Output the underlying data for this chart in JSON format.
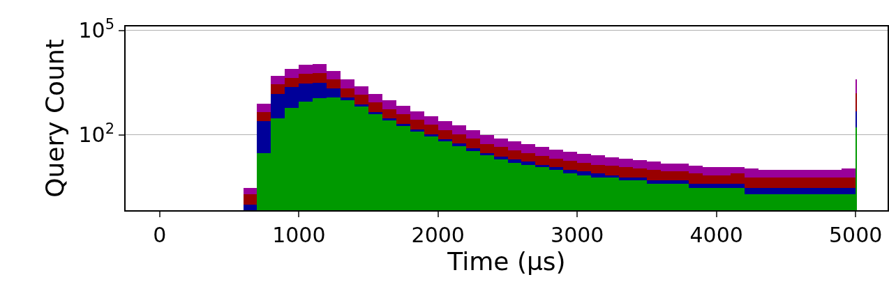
{
  "chart_data": {
    "type": "bar",
    "xlabel": "Time (μs)",
    "ylabel": "Query Count",
    "x": [
      650,
      750,
      850,
      950,
      1050,
      1150,
      1250,
      1350,
      1450,
      1550,
      1650,
      1750,
      1850,
      1950,
      2050,
      2150,
      2250,
      2350,
      2450,
      2550,
      2650,
      2750,
      2850,
      2950,
      3050,
      3150,
      3250,
      3350,
      3450,
      3550,
      3650,
      3750,
      3850,
      3950,
      4050,
      4150,
      4250,
      4350,
      4450,
      4550,
      4650,
      4750,
      4850,
      4950,
      5005
    ],
    "series": [
      {
        "color": "#009900",
        "values": [
          null,
          30,
          300,
          600,
          900,
          1150,
          1200,
          1000,
          650,
          400,
          260,
          180,
          125,
          90,
          65,
          48,
          35,
          26,
          20,
          16,
          14,
          12,
          10,
          8,
          7,
          6,
          6,
          5,
          5,
          4,
          4,
          4,
          3,
          3,
          3,
          3,
          2,
          2,
          2,
          2,
          2,
          2,
          2,
          2,
          165
        ]
      },
      {
        "color": "#000099",
        "values": [
          1,
          220,
          1200,
          1800,
          2100,
          2050,
          1000,
          200,
          100,
          50,
          40,
          30,
          20,
          15,
          10,
          9,
          7,
          4,
          4,
          4,
          3,
          2,
          2,
          2,
          2,
          2,
          1,
          1,
          1,
          1,
          1,
          1,
          1,
          1,
          1,
          1,
          1,
          1,
          1,
          1,
          1,
          1,
          1,
          1,
          315
        ]
      },
      {
        "color": "#990000",
        "values": [
          1,
          200,
          1300,
          2000,
          2800,
          2800,
          1800,
          1000,
          650,
          400,
          250,
          190,
          125,
          95,
          65,
          48,
          38,
          25,
          21,
          16,
          13,
          11,
          9,
          8,
          7,
          6,
          6,
          6,
          5,
          5,
          4,
          4,
          4,
          3,
          3,
          4,
          3,
          3,
          3,
          3,
          3,
          3,
          3,
          3,
          1120
        ]
      },
      {
        "color": "#990099",
        "values": [
          1,
          350,
          2200,
          3600,
          4700,
          5000,
          3000,
          1800,
          1100,
          650,
          450,
          300,
          210,
          150,
          110,
          85,
          60,
          45,
          35,
          29,
          25,
          20,
          17,
          15,
          13,
          12,
          10,
          9,
          8,
          7,
          6,
          6,
          5,
          5,
          5,
          4,
          5,
          4,
          4,
          4,
          4,
          4,
          4,
          5,
          2400
        ]
      }
    ],
    "stacked": true,
    "xlim": [
      -245,
      5230
    ],
    "xticks": [
      0,
      1000,
      2000,
      3000,
      4000,
      5000
    ],
    "ylim": [
      0.69,
      130000
    ],
    "yticks": [
      {
        "value": 100,
        "label": "10$^{2}$"
      },
      {
        "value": 100000,
        "label": "10$^{5}$"
      }
    ],
    "log": "y",
    "grid": "y"
  }
}
